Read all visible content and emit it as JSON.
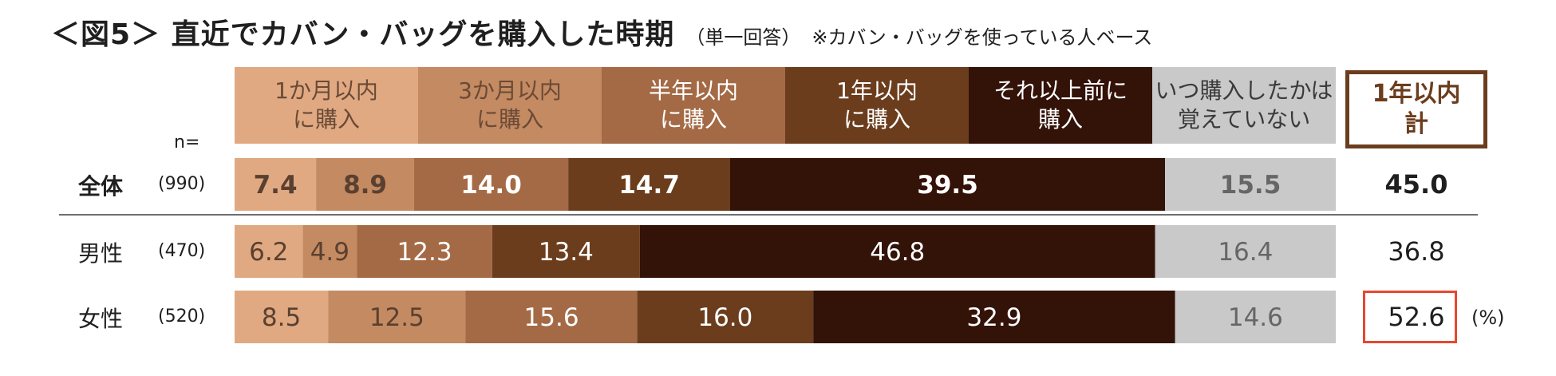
{
  "title": {
    "main": "＜図5＞ 直近でカバン・バッグを購入した時期",
    "sub": "（単一回答）",
    "note": "※カバン・バッグを使っている人ベース"
  },
  "n_label": "n=",
  "total_header": "1年以内\n計",
  "unit_label": "(%)",
  "colors": {
    "c1": "#e0a982",
    "c2": "#c48a62",
    "c3": "#a46a45",
    "c4": "#6b3d1d",
    "c5": "#331208",
    "c6": "#c9c9c9",
    "highlight_border": "#e8472e"
  },
  "chart_data": {
    "type": "bar",
    "orientation": "horizontal-stacked-100",
    "categories": [
      {
        "label": "全体",
        "n": "(990)",
        "total": "45.0",
        "bold": true
      },
      {
        "label": "男性",
        "n": "(470)",
        "total": "36.8",
        "bold": false
      },
      {
        "label": "女性",
        "n": "(520)",
        "total": "52.6",
        "bold": false
      }
    ],
    "series": [
      {
        "name": "1か月以内\nに購入",
        "values": [
          7.4,
          6.2,
          8.5
        ]
      },
      {
        "name": "3か月以内\nに購入",
        "values": [
          8.9,
          4.9,
          12.5
        ]
      },
      {
        "name": "半年以内\nに購入",
        "values": [
          14.0,
          12.3,
          15.6
        ]
      },
      {
        "name": "1年以内\nに購入",
        "values": [
          14.7,
          13.4,
          16.0
        ]
      },
      {
        "name": "それ以上前に\n購入",
        "values": [
          39.5,
          46.8,
          32.9
        ]
      },
      {
        "name": "いつ購入したかは\n覚えていない",
        "values": [
          15.5,
          16.4,
          14.6
        ]
      }
    ],
    "highlighted_total_index": 2
  }
}
